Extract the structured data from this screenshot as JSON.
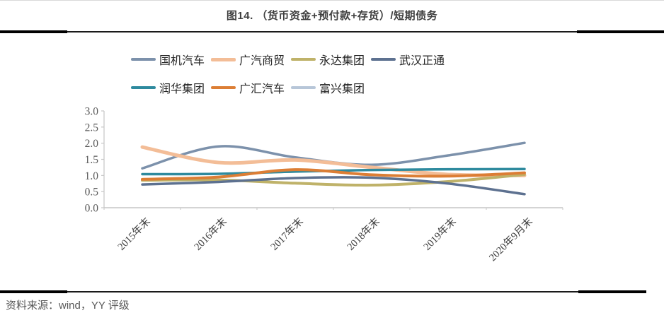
{
  "figure": {
    "title": "图14.  （货币资金+预付款+存货）/短期债务",
    "source_note": "资料来源：wind，YY 评级"
  },
  "chart_data": {
    "type": "line",
    "smoothed": true,
    "title": "（货币资金+预付款+存货）/短期债务",
    "xlabel": "",
    "ylabel": "",
    "ylim": [
      0.0,
      3.0
    ],
    "ytick_step": 0.5,
    "ytick_labels": [
      "0.0",
      "0.5",
      "1.0",
      "1.5",
      "2.0",
      "2.5",
      "3.0"
    ],
    "grid": false,
    "legend_position": "top",
    "axis_color": "#c6c6c6",
    "categories": [
      "2015年末",
      "2016年末",
      "2017年末",
      "2018年末",
      "2019年末",
      "2020年9月末"
    ],
    "series": [
      {
        "name": "国机汽车",
        "color": "#7c91ab",
        "line_width": 3.5,
        "values": [
          1.22,
          1.9,
          1.56,
          1.33,
          1.62,
          2.01
        ]
      },
      {
        "name": "广汽商贸",
        "color": "#f3bd97",
        "line_width": 5,
        "values": [
          1.88,
          1.4,
          1.48,
          1.25,
          1.03,
          1.0
        ]
      },
      {
        "name": "永达集团",
        "color": "#bfb269",
        "line_width": 4,
        "values": [
          0.85,
          0.86,
          0.76,
          0.7,
          0.81,
          1.03
        ]
      },
      {
        "name": "武汉正通",
        "color": "#5d7190",
        "line_width": 3.5,
        "values": [
          0.72,
          0.8,
          0.92,
          0.93,
          0.75,
          0.42
        ]
      },
      {
        "name": "润华集团",
        "color": "#2e8a9e",
        "line_width": 3.5,
        "values": [
          1.04,
          1.05,
          1.12,
          1.17,
          1.19,
          1.2
        ]
      },
      {
        "name": "广汇汽车",
        "color": "#dc7e35",
        "line_width": 4,
        "values": [
          0.88,
          0.95,
          1.18,
          1.02,
          0.98,
          1.08
        ]
      },
      {
        "name": "富兴集团",
        "color": "#b7c6d8",
        "line_width": 3.5,
        "values": null,
        "note": "listed in legend, no line visible in plot"
      }
    ]
  }
}
